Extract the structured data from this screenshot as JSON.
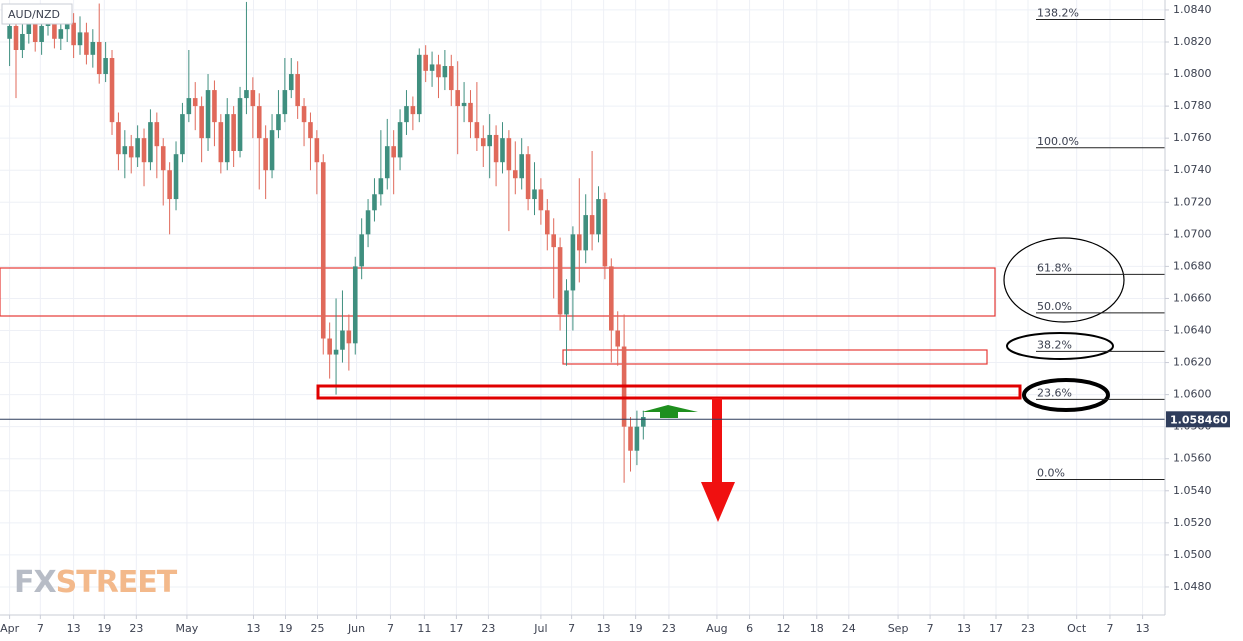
{
  "chart_data": {
    "type": "candlestick",
    "title": "AUD/NZD",
    "watermark": [
      "FX",
      "STREET"
    ],
    "up_color": "#3f8f7f",
    "down_color": "#e0695a",
    "grid": true,
    "open": [
      1.0822,
      1.083,
      1.0815,
      1.0825,
      1.0835,
      1.082,
      1.083,
      1.0838,
      1.0822,
      1.0828,
      1.0832,
      1.0818,
      1.0826,
      1.0812,
      1.082,
      1.08,
      1.081,
      1.077,
      1.075,
      1.0755,
      1.0748,
      1.076,
      1.0745,
      1.077,
      1.0755,
      1.074,
      1.0722,
      1.075,
      1.0775,
      1.0785,
      1.078,
      1.076,
      1.079,
      1.077,
      1.0745,
      1.0775,
      1.0752,
      1.0785,
      1.079,
      1.078,
      1.076,
      1.074,
      1.0765,
      1.0775,
      1.079,
      1.08,
      1.078,
      1.077,
      1.076,
      1.0745,
      1.0635,
      1.0625,
      1.0628,
      1.064,
      1.0632,
      1.068,
      1.07,
      1.0715,
      1.0725,
      1.0735,
      1.0755,
      1.0748,
      1.077,
      1.078,
      1.0775,
      1.0812,
      1.0802,
      1.0806,
      1.0798,
      1.0805,
      1.079,
      1.078,
      1.0782,
      1.077,
      1.076,
      1.0755,
      1.0762,
      1.0745,
      1.076,
      1.074,
      1.0735,
      1.075,
      1.0722,
      1.0728,
      1.0715,
      1.07,
      1.0692,
      1.065,
      1.0665,
      1.07,
      1.069,
      1.0712,
      1.07,
      1.0722,
      1.068,
      1.064,
      1.063,
      1.058,
      1.0565,
      1.058
    ],
    "high": [
      1.0838,
      1.0836,
      1.0832,
      1.0841,
      1.084,
      1.0836,
      1.0844,
      1.0844,
      1.0834,
      1.084,
      1.0838,
      1.0836,
      1.0832,
      1.0828,
      1.0844,
      1.082,
      1.0815,
      1.0776,
      1.0765,
      1.0762,
      1.0768,
      1.0766,
      1.0778,
      1.0776,
      1.076,
      1.0745,
      1.0758,
      1.0782,
      1.0815,
      1.0795,
      1.0786,
      1.08,
      1.0796,
      1.0775,
      1.0785,
      1.078,
      1.0792,
      1.0845,
      1.0798,
      1.0788,
      1.0768,
      1.0775,
      1.079,
      1.081,
      1.081,
      1.0808,
      1.0785,
      1.0776,
      1.0765,
      1.075,
      1.0645,
      1.066,
      1.0665,
      1.065,
      1.0686,
      1.071,
      1.0722,
      1.0735,
      1.0765,
      1.0772,
      1.0765,
      1.0778,
      1.079,
      1.0786,
      1.0816,
      1.0818,
      1.0814,
      1.0812,
      1.0815,
      1.0812,
      1.0808,
      1.0795,
      1.079,
      1.0795,
      1.0768,
      1.0775,
      1.0768,
      1.077,
      1.0765,
      1.0758,
      1.076,
      1.0755,
      1.0745,
      1.0735,
      1.0722,
      1.071,
      1.0698,
      1.0672,
      1.0705,
      1.0735,
      1.0725,
      1.0752,
      1.073,
      1.0726,
      1.0685,
      1.0652,
      1.065,
      1.0586,
      1.059,
      1.059
    ],
    "low": [
      1.0805,
      1.0785,
      1.081,
      1.0819,
      1.0814,
      1.0812,
      1.0824,
      1.0816,
      1.0815,
      1.082,
      1.081,
      1.0812,
      1.0806,
      1.0804,
      1.0794,
      1.0795,
      1.0762,
      1.074,
      1.0735,
      1.0738,
      1.0742,
      1.073,
      1.074,
      1.0735,
      1.0718,
      1.07,
      1.0715,
      1.0745,
      1.077,
      1.0765,
      1.0745,
      1.0752,
      1.0755,
      1.0738,
      1.074,
      1.0742,
      1.0748,
      1.0775,
      1.076,
      1.0728,
      1.0722,
      1.0735,
      1.076,
      1.077,
      1.0785,
      1.0772,
      1.0755,
      1.074,
      1.0725,
      1.0625,
      1.061,
      1.06,
      1.062,
      1.0615,
      1.0625,
      1.0672,
      1.0692,
      1.0708,
      1.0718,
      1.0728,
      1.0725,
      1.074,
      1.0762,
      1.0765,
      1.077,
      1.0795,
      1.0792,
      1.0785,
      1.079,
      1.078,
      1.075,
      1.077,
      1.076,
      1.0752,
      1.0742,
      1.0735,
      1.073,
      1.0738,
      1.0702,
      1.0725,
      1.0728,
      1.0715,
      1.0712,
      1.0706,
      1.069,
      1.066,
      1.064,
      1.0618,
      1.064,
      1.067,
      1.0682,
      1.069,
      1.0695,
      1.0672,
      1.062,
      1.0618,
      1.0545,
      1.0552,
      1.0556,
      1.0572
    ],
    "close": [
      1.083,
      1.0815,
      1.0825,
      1.0835,
      1.082,
      1.083,
      1.0838,
      1.0822,
      1.0828,
      1.0832,
      1.0818,
      1.0826,
      1.0812,
      1.082,
      1.08,
      1.081,
      1.077,
      1.075,
      1.0755,
      1.0748,
      1.076,
      1.0745,
      1.077,
      1.0755,
      1.074,
      1.0722,
      1.075,
      1.0775,
      1.0785,
      1.078,
      1.076,
      1.079,
      1.077,
      1.0745,
      1.0775,
      1.0752,
      1.0785,
      1.079,
      1.078,
      1.076,
      1.074,
      1.0765,
      1.0775,
      1.079,
      1.08,
      1.078,
      1.077,
      1.076,
      1.0745,
      1.0635,
      1.0625,
      1.0628,
      1.064,
      1.0632,
      1.068,
      1.07,
      1.0715,
      1.0725,
      1.0735,
      1.0755,
      1.0748,
      1.077,
      1.078,
      1.0775,
      1.0812,
      1.0802,
      1.0806,
      1.0798,
      1.0805,
      1.079,
      1.078,
      1.0782,
      1.077,
      1.076,
      1.0755,
      1.0762,
      1.0745,
      1.076,
      1.074,
      1.0735,
      1.075,
      1.0722,
      1.0728,
      1.0715,
      1.07,
      1.0692,
      1.065,
      1.0665,
      1.07,
      1.069,
      1.0712,
      1.07,
      1.0722,
      1.068,
      1.064,
      1.063,
      1.058,
      1.0565,
      1.058,
      1.0586
    ],
    "xlim": [
      -1.5,
      180.5
    ],
    "xticks": [
      {
        "value": 0,
        "label": "Apr"
      },
      {
        "value": 4.8,
        "label": "7"
      },
      {
        "value": 10,
        "label": "13"
      },
      {
        "value": 14.8,
        "label": "19"
      },
      {
        "value": 19.8,
        "label": "23"
      },
      {
        "value": 27.7,
        "label": "May"
      },
      {
        "value": 38.1,
        "label": "13"
      },
      {
        "value": 43.1,
        "label": "19"
      },
      {
        "value": 48.1,
        "label": "25"
      },
      {
        "value": 54.2,
        "label": "Jun"
      },
      {
        "value": 59.5,
        "label": "7"
      },
      {
        "value": 64.8,
        "label": "11"
      },
      {
        "value": 69.8,
        "label": "17"
      },
      {
        "value": 74.8,
        "label": "23"
      },
      {
        "value": 83,
        "label": "Jul"
      },
      {
        "value": 87.8,
        "label": "7"
      },
      {
        "value": 92.8,
        "label": "13"
      },
      {
        "value": 97.8,
        "label": "19"
      },
      {
        "value": 103,
        "label": "23"
      },
      {
        "value": 110.5,
        "label": "Aug"
      },
      {
        "value": 115.6,
        "label": "6"
      },
      {
        "value": 120.9,
        "label": "12"
      },
      {
        "value": 126.1,
        "label": "18"
      },
      {
        "value": 131.1,
        "label": "24"
      },
      {
        "value": 138.8,
        "label": "Sep"
      },
      {
        "value": 143.8,
        "label": "7"
      },
      {
        "value": 149.1,
        "label": "13"
      },
      {
        "value": 154.1,
        "label": "17"
      },
      {
        "value": 159.1,
        "label": "23"
      },
      {
        "value": 166.7,
        "label": "Oct"
      },
      {
        "value": 171.9,
        "label": "7"
      },
      {
        "value": 177,
        "label": "13"
      }
    ],
    "ylim": [
      1.04625,
      1.08462
    ],
    "yticks": [
      {
        "value": 1.048,
        "label": "1.0480"
      },
      {
        "value": 1.05,
        "label": "1.0500"
      },
      {
        "value": 1.052,
        "label": "1.0520"
      },
      {
        "value": 1.054,
        "label": "1.0540"
      },
      {
        "value": 1.056,
        "label": "1.0560"
      },
      {
        "value": 1.058,
        "label": "1.0580"
      },
      {
        "value": 1.06,
        "label": "1.0600"
      },
      {
        "value": 1.062,
        "label": "1.0620"
      },
      {
        "value": 1.064,
        "label": "1.0640"
      },
      {
        "value": 1.066,
        "label": "1.0660"
      },
      {
        "value": 1.068,
        "label": "1.0680"
      },
      {
        "value": 1.07,
        "label": "1.0700"
      },
      {
        "value": 1.072,
        "label": "1.0720"
      },
      {
        "value": 1.074,
        "label": "1.0740"
      },
      {
        "value": 1.076,
        "label": "1.0760"
      },
      {
        "value": 1.078,
        "label": "1.0780"
      },
      {
        "value": 1.08,
        "label": "1.0800"
      },
      {
        "value": 1.082,
        "label": "1.0820"
      },
      {
        "value": 1.084,
        "label": "1.0840"
      }
    ],
    "fib_levels": [
      {
        "value": 1.0834,
        "label": "138.2%"
      },
      {
        "value": 1.0754,
        "label": "100.0%"
      },
      {
        "value": 1.0675,
        "label": "61.8%"
      },
      {
        "value": 1.0651,
        "label": "50.0%"
      },
      {
        "value": 1.0627,
        "label": "38.2%"
      },
      {
        "value": 1.0597,
        "label": "23.6%"
      },
      {
        "value": 1.0547,
        "label": "0.0%"
      }
    ],
    "last_price": {
      "value": 1.05846,
      "label": "1.058460"
    }
  }
}
